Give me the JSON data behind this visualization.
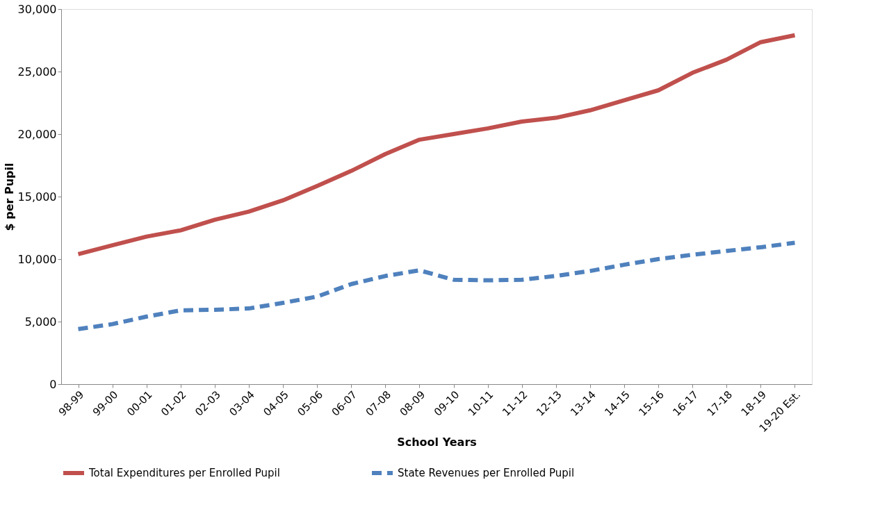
{
  "chart_data": {
    "type": "line",
    "xlabel": "School Years",
    "ylabel": "$ per Pupil",
    "categories": [
      "98-99",
      "99-00",
      "00-01",
      "01-02",
      "02-03",
      "03-04",
      "04-05",
      "05-06",
      "06-07",
      "07-08",
      "08-09",
      "09-10",
      "10-11",
      "11-12",
      "12-13",
      "13-14",
      "14-15",
      "15-16",
      "16-17",
      "17-18",
      "18-19",
      "19-20 Est."
    ],
    "series": [
      {
        "name": "Total Expenditures per Enrolled Pupil",
        "color": "#c0504d",
        "line_style": "solid",
        "values": [
          10400,
          11100,
          11800,
          12300,
          13150,
          13800,
          14700,
          15850,
          17050,
          18400,
          19550,
          20000,
          20450,
          21000,
          21300,
          21900,
          22700,
          23500,
          24900,
          25950,
          27350,
          27900
        ]
      },
      {
        "name": "State Revenues per Enrolled Pupil",
        "color": "#4f81bd",
        "line_style": "dashed",
        "values": [
          4400,
          4800,
          5400,
          5900,
          5950,
          6050,
          6500,
          7000,
          8000,
          8650,
          9100,
          8350,
          8300,
          8350,
          8650,
          9050,
          9550,
          10000,
          10350,
          10650,
          10950,
          11300
        ]
      }
    ],
    "ylim": [
      0,
      30000
    ],
    "yticks": [
      0,
      {
        "value": 5000,
        "label": "5,000"
      },
      {
        "value": 10000,
        "label": "10,000"
      },
      {
        "value": 15000,
        "label": "15,000"
      },
      {
        "value": 20000,
        "label": "20,000"
      },
      {
        "value": 25000,
        "label": "25,000"
      },
      {
        "value": 30000,
        "label": "30,000"
      }
    ],
    "grid": false,
    "legend": "bottom",
    "marker": "none"
  }
}
